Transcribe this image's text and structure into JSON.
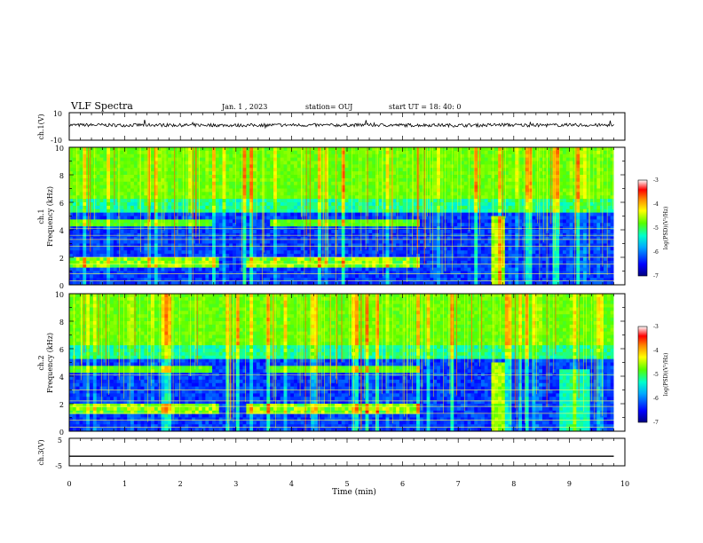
{
  "header": {
    "title": "VLF Spectra",
    "date": "Jan. 1 , 2023",
    "station": "station= OUJ",
    "start": "start UT = 18: 40: 0"
  },
  "chart_data": [
    {
      "type": "line",
      "panel": "ch1-waveform",
      "ylabel": "ch.1(V)",
      "ylim": [
        -10,
        10
      ],
      "yticks": [
        "10",
        "-10"
      ],
      "x": [
        0,
        0.5,
        1.0,
        1.5,
        2.0,
        2.5,
        3.0,
        3.5,
        4.0,
        4.5,
        5.0,
        5.5,
        6.0,
        6.5,
        7.0,
        7.5,
        7.8,
        8.0,
        8.5,
        9.0,
        9.5,
        9.8
      ],
      "values": [
        1.0,
        1.0,
        0.9,
        1.1,
        0.9,
        1.0,
        0.8,
        1.0,
        1.0,
        0.9,
        1.0,
        1.0,
        0.9,
        1.0,
        0.8,
        0.9,
        1.2,
        1.0,
        0.9,
        1.0,
        0.9,
        1.0
      ],
      "noise_amplitude": 1.2,
      "color": "#000000"
    },
    {
      "type": "heatmap",
      "panel": "ch1-spectrogram",
      "ylabel": "ch.1\nFrequency (kHz)",
      "ylim": [
        0,
        10
      ],
      "yticks": [
        "0",
        "2",
        "4",
        "6",
        "8",
        "10"
      ],
      "colorbar": {
        "label": "log(PSD)(V²/Hz)",
        "range": [
          -7,
          -3
        ],
        "ticks": [
          "-3",
          "-4",
          "-5",
          "-6",
          "-7"
        ],
        "colors": [
          "#000088",
          "#0000ff",
          "#00aaff",
          "#00ffcc",
          "#55ff00",
          "#ffff00",
          "#ff8800",
          "#ff0000",
          "#ffffff"
        ]
      },
      "band_lines_khz": [
        0.3,
        0.8,
        1.5,
        2.0,
        2.8,
        3.3,
        3.6,
        4.1
      ]
    },
    {
      "type": "heatmap",
      "panel": "ch2-spectrogram",
      "ylabel": "ch.2\nFrequency (kHz)",
      "ylim": [
        0,
        10
      ],
      "yticks": [
        "0",
        "2",
        "4",
        "6",
        "8",
        "10"
      ],
      "colorbar": {
        "label": "log(PSD)(V²/Hz)",
        "range": [
          -7,
          -3
        ],
        "ticks": [
          "-3",
          "-4",
          "-5",
          "-6",
          "-7"
        ],
        "colors": [
          "#000088",
          "#0000ff",
          "#00aaff",
          "#00ffcc",
          "#55ff00",
          "#ffff00",
          "#ff8800",
          "#ff0000",
          "#ffffff"
        ]
      },
      "band_lines_khz": [
        0.3,
        0.8,
        1.3,
        1.8,
        2.2,
        3.0,
        4.1
      ]
    },
    {
      "type": "line",
      "panel": "ch3-waveform",
      "ylabel": "ch.3(V)",
      "ylim": [
        -5,
        5
      ],
      "yticks": [
        "5",
        "-5"
      ],
      "x": [
        0,
        9.8
      ],
      "values": [
        -1.5,
        -1.5
      ],
      "color": "#000000"
    }
  ],
  "xaxis": {
    "label": "Time (min)",
    "range": [
      0,
      10
    ],
    "ticks": [
      "0",
      "1",
      "2",
      "3",
      "4",
      "5",
      "6",
      "7",
      "8",
      "9",
      "10"
    ]
  }
}
